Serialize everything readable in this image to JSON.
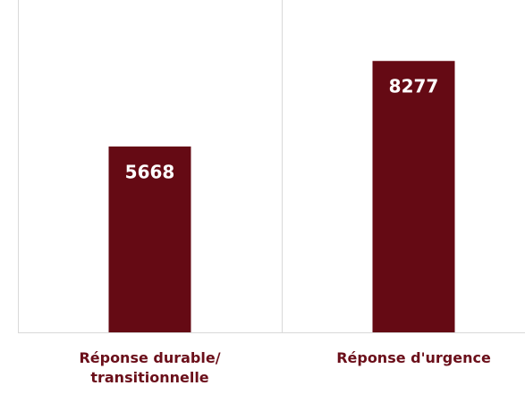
{
  "chart_data": {
    "type": "bar",
    "categories": [
      "Réponse durable/ transitionnelle",
      "Réponse d'urgence"
    ],
    "values": [
      5668,
      8277
    ],
    "color": "#650a14",
    "ylim": [
      0,
      10000
    ]
  }
}
